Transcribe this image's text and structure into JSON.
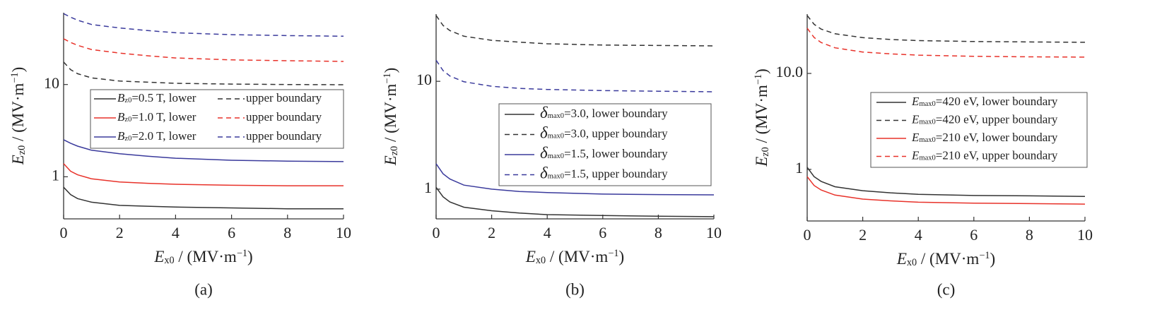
{
  "chart_data": [
    {
      "type": "line",
      "caption": "(a)",
      "xlabel": "Ex0 / (MV·m−1)",
      "ylabel": "Ez0 / (MV·m−1)",
      "log_y": true,
      "x": [
        0,
        0.25,
        0.5,
        1,
        2,
        3,
        4,
        6,
        8,
        10
      ],
      "xlim": [
        0,
        10
      ],
      "xticks": [
        0,
        2,
        4,
        6,
        8,
        10
      ],
      "ylim": [
        0.35,
        60
      ],
      "yticks": [
        1,
        10
      ],
      "series": [
        {
          "name": "Bz0=0.5 T, lower",
          "color": "#333333",
          "style": "solid",
          "values": [
            0.77,
            0.64,
            0.58,
            0.53,
            0.49,
            0.48,
            0.47,
            0.46,
            0.45,
            0.45
          ]
        },
        {
          "name": "upper boundary",
          "color": "#333333",
          "style": "dashed",
          "values": [
            17.5,
            14.5,
            13.1,
            11.8,
            10.9,
            10.6,
            10.3,
            10.1,
            10.0,
            9.95
          ]
        },
        {
          "name": "Bz0=1.0 T, lower",
          "color": "#e8322a",
          "style": "solid",
          "values": [
            1.39,
            1.15,
            1.05,
            0.95,
            0.88,
            0.85,
            0.83,
            0.81,
            0.8,
            0.8
          ]
        },
        {
          "name": "upper boundary",
          "color": "#e8322a",
          "style": "dashed",
          "values": [
            31.3,
            28.6,
            26.6,
            23.9,
            21.9,
            20.5,
            19.4,
            18.5,
            18.1,
            17.8
          ]
        },
        {
          "name": "Bz0=2.0 T, lower",
          "color": "#3a3a9c",
          "style": "solid",
          "values": [
            2.52,
            2.31,
            2.15,
            1.94,
            1.78,
            1.67,
            1.59,
            1.51,
            1.48,
            1.46
          ]
        },
        {
          "name": "upper boundary",
          "color": "#3a3a9c",
          "style": "dashed",
          "values": [
            58.6,
            53.6,
            49.8,
            44.7,
            41.0,
            38.4,
            36.4,
            34.7,
            33.9,
            33.4
          ]
        }
      ]
    },
    {
      "type": "line",
      "caption": "(b)",
      "xlabel": "Ex0 / (MV·m−1)",
      "ylabel": "Ez0 / (MV·m−1)",
      "log_y": true,
      "x": [
        0,
        0.25,
        0.5,
        1,
        2,
        3,
        4,
        6,
        8,
        10
      ],
      "xlim": [
        0,
        10
      ],
      "xticks": [
        0,
        2,
        4,
        6,
        8,
        10
      ],
      "ylim": [
        0.53,
        42
      ],
      "yticks": [
        1,
        10
      ],
      "series": [
        {
          "name": "δmax0=3.0, lower boundary",
          "color": "#333333",
          "style": "solid",
          "values": [
            1.04,
            0.85,
            0.76,
            0.68,
            0.63,
            0.6,
            0.58,
            0.57,
            0.56,
            0.555
          ]
        },
        {
          "name": "δmax0=3.0, upper boundary",
          "color": "#333333",
          "style": "dashed",
          "values": [
            40.8,
            33.0,
            29.5,
            26.2,
            24.0,
            23.1,
            22.3,
            21.7,
            21.5,
            21.3
          ]
        },
        {
          "name": "δmax0=1.5, lower boundary",
          "color": "#3a3a9c",
          "style": "solid",
          "values": [
            1.72,
            1.39,
            1.24,
            1.09,
            1.0,
            0.95,
            0.93,
            0.9,
            0.89,
            0.885
          ]
        },
        {
          "name": "δmax0=1.5, upper boundary",
          "color": "#3a3a9c",
          "style": "dashed",
          "values": [
            15.7,
            12.6,
            11.2,
            9.9,
            9.0,
            8.6,
            8.4,
            8.2,
            8.1,
            8.0
          ]
        }
      ]
    },
    {
      "type": "line",
      "caption": "(c)",
      "xlabel": "Ex0 / (MV·m−1)",
      "ylabel": "Ez0 / (MV·m−1)",
      "log_y": true,
      "x": [
        0,
        0.25,
        0.5,
        1,
        2,
        3,
        4,
        6,
        8,
        10
      ],
      "xlim": [
        0,
        10
      ],
      "xticks": [
        0,
        2,
        4,
        6,
        8,
        10
      ],
      "ylim": [
        0.29,
        41.5
      ],
      "yticks": [
        1,
        {
          "value": 10,
          "label": "10.0"
        }
      ],
      "series": [
        {
          "name": "Emax0=420 eV, lower boundary",
          "color": "#333333",
          "style": "solid",
          "values": [
            1.05,
            0.84,
            0.75,
            0.66,
            0.6,
            0.57,
            0.55,
            0.535,
            0.53,
            0.523
          ]
        },
        {
          "name": "Emax0=420 eV, upper boundary",
          "color": "#333333",
          "style": "dashed",
          "values": [
            40.1,
            32.5,
            29.0,
            25.9,
            23.6,
            22.6,
            22.0,
            21.5,
            21.3,
            21.1
          ]
        },
        {
          "name": "Emax0=210 eV, lower boundary",
          "color": "#e8322a",
          "style": "solid",
          "values": [
            0.84,
            0.68,
            0.61,
            0.54,
            0.49,
            0.47,
            0.455,
            0.445,
            0.44,
            0.435
          ]
        },
        {
          "name": "Emax0=210 eV, upper boundary",
          "color": "#e8322a",
          "style": "dashed",
          "values": [
            29.6,
            23.7,
            21.0,
            18.5,
            16.7,
            16.0,
            15.5,
            15.1,
            14.9,
            14.8
          ]
        }
      ]
    }
  ]
}
